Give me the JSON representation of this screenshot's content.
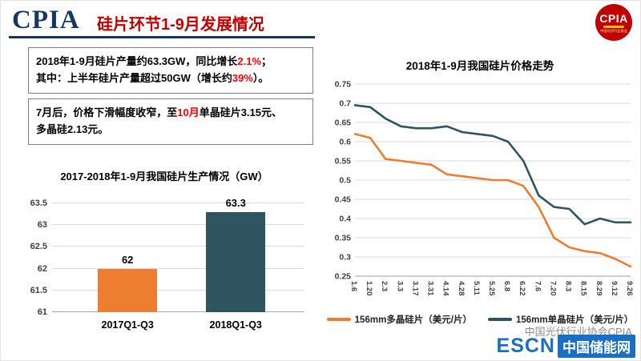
{
  "header": {
    "logo_text": "CPIA",
    "title": "硅片环节1-9月发展情况",
    "badge_text": "CPIA",
    "badge_sub": "中国光伏行业协会"
  },
  "notes": {
    "box1": {
      "seg1": "2018年1-9月硅片产量约63.3GW，同比增长",
      "seg2": "2.1%",
      "seg3": "；",
      "seg4": "其中：上半年硅片产量超过50GW（增长约",
      "seg5": "39%",
      "seg6": "）。"
    },
    "box2": {
      "seg1": "7月后，价格下滑幅度收窄，至",
      "seg2": "10月",
      "seg3": "单晶硅片3.15元、",
      "seg4": "多晶硅2.13元。"
    }
  },
  "chart_data": [
    {
      "type": "bar",
      "title": "2017-2018年1-9月我国硅片生产情况（GW）",
      "categories": [
        "2017Q1-Q3",
        "2018Q1-Q3"
      ],
      "values": [
        62,
        63.3
      ],
      "data_labels": [
        "62",
        "63.3"
      ],
      "bar_colors": [
        "#ED7D31",
        "#2F5560"
      ],
      "ylim": [
        61,
        63.5
      ],
      "yticks": [
        61,
        61.5,
        62,
        62.5,
        63,
        63.5
      ],
      "grid": true,
      "legend_position": "none"
    },
    {
      "type": "line",
      "title": "2018年1-9月我国硅片价格走势",
      "x": [
        "1.6",
        "1.20",
        "2.3",
        "3.3",
        "3.17",
        "3.31",
        "4.14",
        "4.28",
        "5.11",
        "5.25",
        "6.8",
        "6.22",
        "7.6",
        "7.20",
        "8.3",
        "8.15",
        "8.29",
        "9.12",
        "9.26"
      ],
      "series": [
        {
          "name": "156mm多晶硅片（美元/片）",
          "color": "#ED7D31",
          "values": [
            0.62,
            0.61,
            0.555,
            0.55,
            0.545,
            0.54,
            0.515,
            0.51,
            0.505,
            0.5,
            0.5,
            0.485,
            0.43,
            0.35,
            0.325,
            0.315,
            0.31,
            0.295,
            0.275
          ]
        },
        {
          "name": "156mm单晶硅片（美元/片）",
          "color": "#2F5560",
          "values": [
            0.695,
            0.69,
            0.66,
            0.64,
            0.635,
            0.635,
            0.64,
            0.625,
            0.62,
            0.615,
            0.6,
            0.55,
            0.46,
            0.43,
            0.425,
            0.385,
            0.4,
            0.39,
            0.39
          ]
        }
      ],
      "ylim": [
        0.25,
        0.75
      ],
      "yticks": [
        0.25,
        0.3,
        0.35,
        0.4,
        0.45,
        0.5,
        0.55,
        0.6,
        0.65,
        0.7,
        0.75
      ],
      "grid": true,
      "legend_position": "bottom"
    }
  ],
  "footer": {
    "watermark": "中国光伏行业协会CPIA",
    "escn": "ESCN",
    "escn_site": "中国储能网"
  }
}
